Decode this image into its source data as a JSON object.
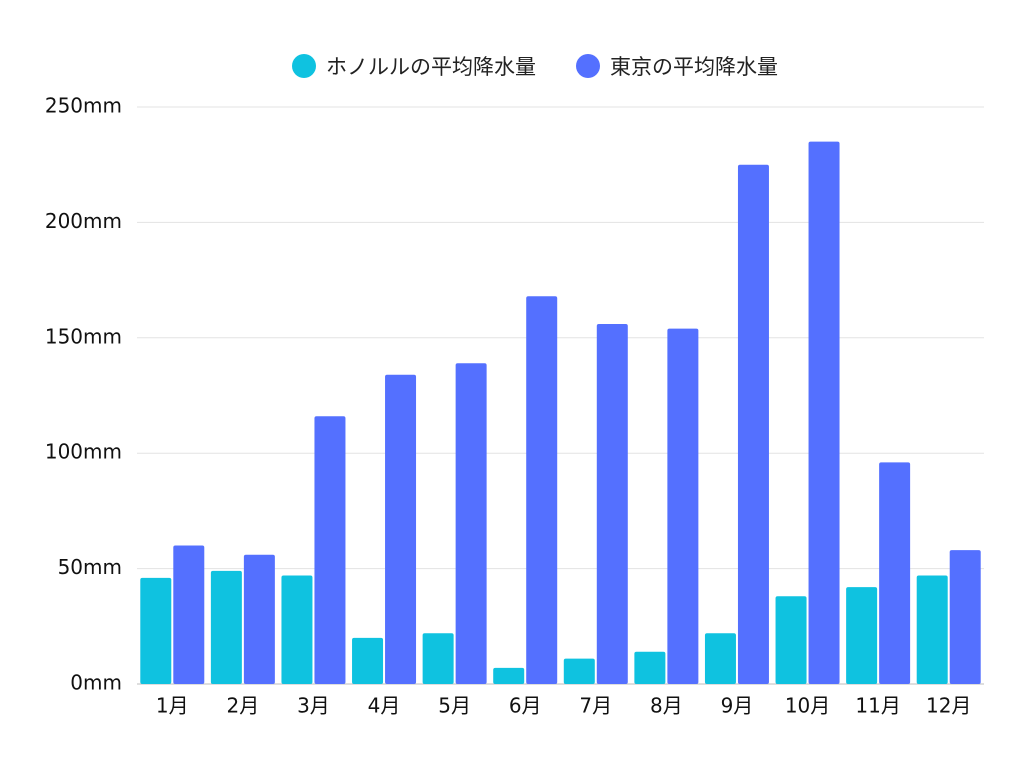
{
  "chart_data": {
    "type": "bar",
    "title": "",
    "xlabel": "",
    "ylabel": "",
    "categories": [
      "1月",
      "2月",
      "3月",
      "4月",
      "5月",
      "6月",
      "7月",
      "8月",
      "9月",
      "10月",
      "11月",
      "12月"
    ],
    "series": [
      {
        "name": "ホノルルの平均降水量",
        "color": "#0fc2e0",
        "values": [
          46,
          49,
          47,
          20,
          22,
          7,
          11,
          14,
          22,
          38,
          42,
          47
        ]
      },
      {
        "name": "東京の平均降水量",
        "color": "#5470ff",
        "values": [
          60,
          56,
          116,
          134,
          139,
          168,
          156,
          154,
          225,
          235,
          96,
          58
        ]
      }
    ],
    "ylim": [
      0,
      250
    ],
    "y_ticks": [
      0,
      50,
      100,
      150,
      200,
      250
    ],
    "y_tick_labels": [
      "0mm",
      "50mm",
      "100mm",
      "150mm",
      "200mm",
      "250mm"
    ],
    "grid": true,
    "legend_position": "top-center"
  }
}
